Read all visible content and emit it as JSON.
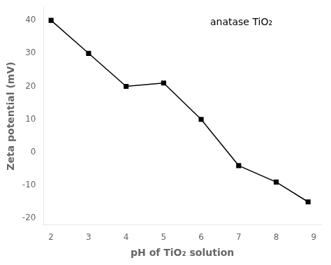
{
  "chart_data": {
    "type": "line",
    "x": [
      2,
      3,
      4,
      5,
      6,
      7,
      8,
      8.85
    ],
    "values": [
      40,
      30,
      20,
      21,
      10,
      -4,
      -9,
      -15
    ],
    "xlabel": "pH of TiO₂ solution",
    "ylabel": "Zeta potential (mV)",
    "annotation": "anatase TiO₂",
    "xlim": [
      1.8,
      9.2
    ],
    "ylim": [
      -22,
      44
    ],
    "xticks": [
      2,
      3,
      4,
      5,
      6,
      7,
      8,
      9
    ],
    "yticks": [
      -20,
      -10,
      0,
      10,
      20,
      30,
      40
    ],
    "color": "#000000",
    "marker": "square",
    "grid": false
  }
}
